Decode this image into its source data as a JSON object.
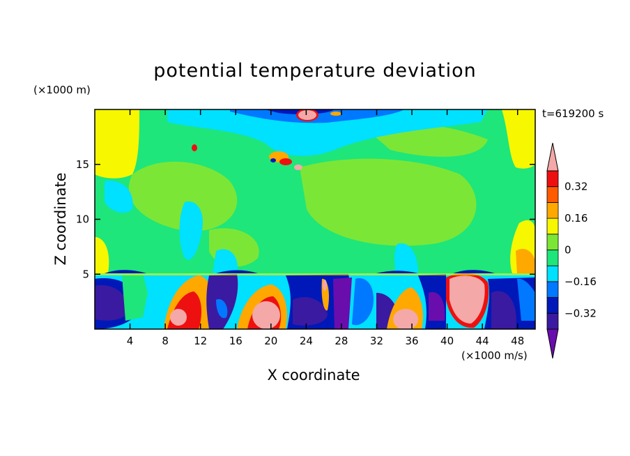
{
  "chart_data": {
    "type": "heatmap",
    "title": "potential temperature deviation",
    "xlabel": "X coordinate",
    "ylabel": "Z coordinate",
    "x_units": "(×1000 m/s)",
    "y_units": "(×1000 m)",
    "time_label": "t=619200 s",
    "xlim": [
      0,
      50
    ],
    "ylim": [
      0,
      20
    ],
    "x_ticks": [
      4,
      8,
      12,
      16,
      20,
      24,
      28,
      32,
      36,
      40,
      44,
      48
    ],
    "y_ticks": [
      5,
      10,
      15
    ],
    "colorbar": {
      "tick_labels": [
        "0.32",
        "0.16",
        "0",
        "-0.16",
        "-0.32"
      ],
      "tick_values": [
        0.32,
        0.16,
        0,
        -0.16,
        -0.32
      ],
      "levels": [
        -0.4,
        -0.32,
        -0.24,
        -0.16,
        -0.08,
        0,
        0.08,
        0.16,
        0.24,
        0.32,
        0.4
      ],
      "colors": [
        "#6a0dad",
        "#3a1aa0",
        "#0018b8",
        "#0078ff",
        "#00e0ff",
        "#1ee67a",
        "#7ce636",
        "#f7f700",
        "#ffa800",
        "#ff5a00",
        "#ee1010",
        "#f4a8a8"
      ],
      "extend": "both"
    }
  }
}
